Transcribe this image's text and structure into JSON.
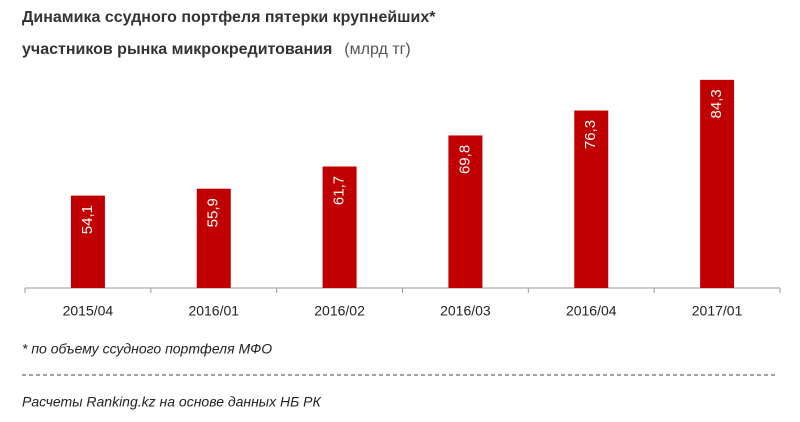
{
  "chart_data": {
    "type": "bar",
    "title": [
      "Динамика  ссудного  портфеля  пятерки  крупнейших*",
      "участников  рынка  микрокредитования"
    ],
    "unit": "(млрд тг)",
    "categories": [
      "2015/04",
      "2016/01",
      "2016/02",
      "2016/03",
      "2016/04",
      "2017/01"
    ],
    "values": [
      54.1,
      55.9,
      61.7,
      69.8,
      76.3,
      84.3
    ],
    "value_labels": [
      "54,1",
      "55,9",
      "61,7",
      "69,8",
      "76,3",
      "84,3"
    ],
    "color": "#c00000",
    "ylim": [
      30,
      90
    ],
    "footnote": "* по объему ссудного портфеля МФО",
    "source": "Расчеты Ranking.kz на основе данных НБ РК"
  }
}
